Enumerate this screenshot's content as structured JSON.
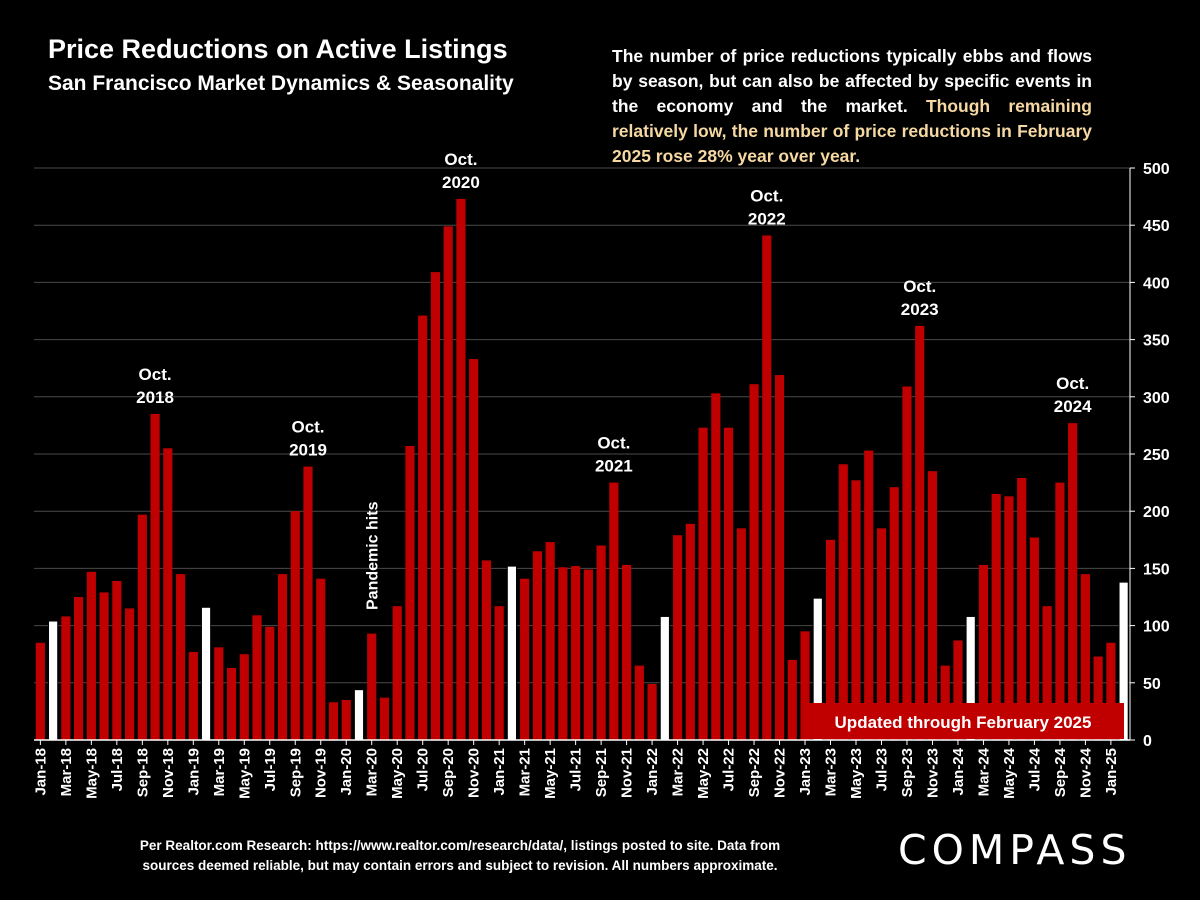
{
  "header": {
    "title": "Price Reductions on Active Listings",
    "subtitle": "San Francisco Market Dynamics & Seasonality"
  },
  "description": {
    "part1": "The number of price reductions typically ebbs and flows by season, but can also be affected by specific events in the economy and the market. ",
    "part2": "Though remaining relatively low, the number of price reductions in February 2025 rose 28% year over year."
  },
  "footer": {
    "line1": "Per Realtor.com Research:  https://www.realtor.com/research/data/, listings posted to site. Data from",
    "line2": "sources deemed reliable, but may contain errors and subject to revision. All numbers approximate."
  },
  "logo": "COMPASS",
  "colors": {
    "bar": "#c00000",
    "january_bar": "#ffffff",
    "background": "#000000",
    "highlight_text": "#f6d8a2",
    "banner": "#c00000"
  },
  "chart_data": {
    "type": "bar",
    "title": "Price Reductions on Active Listings",
    "subtitle": "San Francisco Market Dynamics & Seasonality",
    "ylim": [
      0,
      500
    ],
    "yticks": [
      0,
      50,
      100,
      150,
      200,
      250,
      300,
      350,
      400,
      450,
      500
    ],
    "y_axis_side": "right",
    "grid": true,
    "categories": [
      "Jan-18",
      "Feb-18",
      "Mar-18",
      "Apr-18",
      "May-18",
      "Jun-18",
      "Jul-18",
      "Aug-18",
      "Sep-18",
      "Oct-18",
      "Nov-18",
      "Dec-18",
      "Jan-19",
      "Feb-19",
      "Mar-19",
      "Apr-19",
      "May-19",
      "Jun-19",
      "Jul-19",
      "Aug-19",
      "Sep-19",
      "Oct-19",
      "Nov-19",
      "Dec-19",
      "Jan-20",
      "Feb-20",
      "Mar-20",
      "Apr-20",
      "May-20",
      "Jun-20",
      "Jul-20",
      "Aug-20",
      "Sep-20",
      "Oct-20",
      "Nov-20",
      "Dec-20",
      "Jan-21",
      "Feb-21",
      "Mar-21",
      "Apr-21",
      "May-21",
      "Jun-21",
      "Jul-21",
      "Aug-21",
      "Sep-21",
      "Oct-21",
      "Nov-21",
      "Dec-21",
      "Jan-22",
      "Feb-22",
      "Mar-22",
      "Apr-22",
      "May-22",
      "Jun-22",
      "Jul-22",
      "Aug-22",
      "Sep-22",
      "Oct-22",
      "Nov-22",
      "Dec-22",
      "Jan-23",
      "Feb-23",
      "Mar-23",
      "Apr-23",
      "May-23",
      "Jun-23",
      "Jul-23",
      "Aug-23",
      "Sep-23",
      "Oct-23",
      "Nov-23",
      "Dec-23",
      "Jan-24",
      "Feb-24",
      "Mar-24",
      "Apr-24",
      "May-24",
      "Jun-24",
      "Jul-24",
      "Aug-24",
      "Sep-24",
      "Oct-24",
      "Nov-24",
      "Dec-24",
      "Jan-25",
      "Feb-25"
    ],
    "values": [
      85,
      104,
      108,
      125,
      147,
      129,
      139,
      115,
      197,
      285,
      255,
      145,
      77,
      116,
      81,
      63,
      75,
      109,
      99,
      145,
      200,
      239,
      141,
      33,
      35,
      44,
      93,
      37,
      117,
      257,
      371,
      409,
      449,
      473,
      333,
      157,
      117,
      152,
      141,
      165,
      173,
      151,
      152,
      149,
      170,
      225,
      153,
      65,
      49,
      108,
      179,
      189,
      273,
      303,
      273,
      185,
      311,
      441,
      319,
      70,
      95,
      124,
      175,
      241,
      227,
      253,
      185,
      221,
      309,
      362,
      235,
      65,
      87,
      108,
      153,
      215,
      213,
      229,
      177,
      117,
      225,
      277,
      145,
      73,
      85,
      138
    ],
    "highlight_indices": [
      1,
      13,
      25,
      37,
      49,
      61,
      73,
      85
    ],
    "x_tick_labels": [
      "Jan-18",
      "Mar-18",
      "May-18",
      "Jul-18",
      "Sep-18",
      "Nov-18",
      "Jan-19",
      "Mar-19",
      "May-19",
      "Jul-19",
      "Sep-19",
      "Nov-19",
      "Jan-20",
      "Mar-20",
      "May-20",
      "Jul-20",
      "Sep-20",
      "Nov-20",
      "Jan-21",
      "Mar-21",
      "May-21",
      "Jul-21",
      "Sep-21",
      "Nov-21",
      "Jan-22",
      "Mar-22",
      "May-22",
      "Jul-22",
      "Sep-22",
      "Nov-22",
      "Jan-23",
      "Mar-23",
      "May-23",
      "Jul-23",
      "Sep-23",
      "Nov-23",
      "Jan-24",
      "Mar-24",
      "May-24",
      "Jul-24",
      "Sep-24",
      "Nov-24",
      "Jan-25"
    ],
    "annotations": [
      {
        "index": 9,
        "line1": "Oct.",
        "line2": "2018"
      },
      {
        "index": 21,
        "line1": "Oct.",
        "line2": "2019"
      },
      {
        "index": 33,
        "line1": "Oct.",
        "line2": "2020"
      },
      {
        "index": 45,
        "line1": "Oct.",
        "line2": "2021"
      },
      {
        "index": 57,
        "line1": "Oct.",
        "line2": "2022"
      },
      {
        "index": 69,
        "line1": "Oct.",
        "line2": "2023"
      },
      {
        "index": 81,
        "line1": "Oct.",
        "line2": "2024"
      }
    ],
    "event_annotation": {
      "index": 26,
      "text": "Pandemic hits"
    },
    "banner": "Updated through February 2025"
  }
}
